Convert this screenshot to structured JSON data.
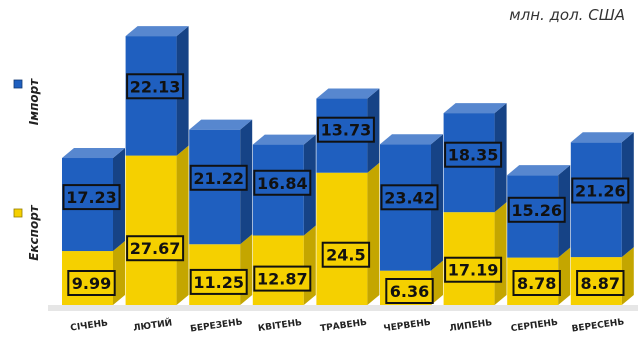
{
  "chart_data": {
    "type": "bar",
    "stacked": true,
    "unit_label": "млн. дол. США",
    "categories": [
      "СІЧЕНЬ",
      "ЛЮТИЙ",
      "БЕРЕЗЕНЬ",
      "КВІТЕНЬ",
      "ТРАВЕНЬ",
      "ЧЕРВЕНЬ",
      "ЛИПЕНЬ",
      "СЕРПЕНЬ",
      "ВЕРЕСЕНЬ"
    ],
    "series": [
      {
        "name": "Експорт",
        "color": "#F5D000",
        "values": [
          9.99,
          27.67,
          11.25,
          12.87,
          24.5,
          6.36,
          17.19,
          8.78,
          8.87
        ]
      },
      {
        "name": "Імпорт",
        "color": "#1F5FBF",
        "values": [
          17.23,
          22.13,
          21.22,
          16.84,
          13.73,
          23.42,
          18.35,
          15.26,
          21.26
        ]
      }
    ],
    "legend_position": "left",
    "grid": false
  }
}
